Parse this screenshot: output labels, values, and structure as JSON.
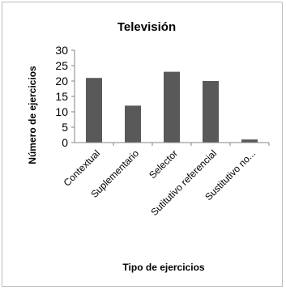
{
  "chart_data": {
    "type": "bar",
    "title": "Televisión",
    "xlabel": "Tipo de ejercicios",
    "ylabel": "Número de ejercicios",
    "categories": [
      "Contextual",
      "Suplementario",
      "Selector",
      "Sutitutivo referencial",
      "Sustitutivo no..."
    ],
    "values": [
      21,
      12,
      23,
      20,
      1
    ],
    "ylim": [
      0,
      30
    ],
    "yticks": [
      0,
      5,
      10,
      15,
      20,
      25,
      30
    ],
    "grid": false,
    "legend": "none",
    "bar_color": "#595959"
  }
}
